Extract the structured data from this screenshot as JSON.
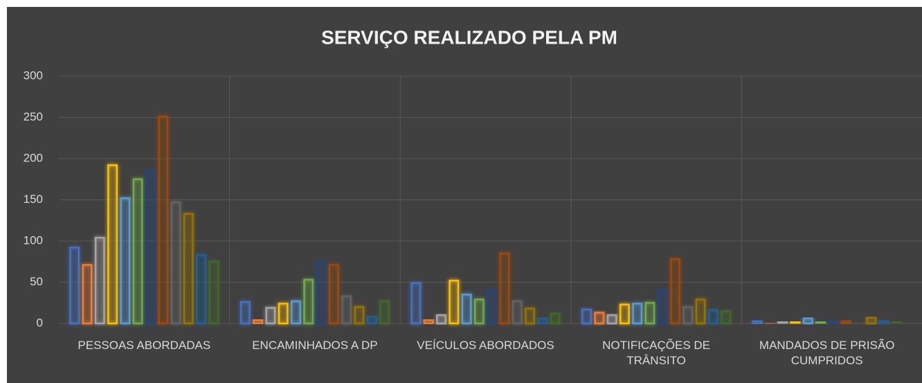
{
  "chart_data": {
    "type": "bar",
    "title": "SERVIÇO REALIZADO PELA PM",
    "categories": [
      "PESSOAS ABORDADAS",
      "ENCAMINHADOS A DP",
      "VEÍCULOS ABORDADOS",
      "NOTIFICAÇÕES DE TRÂNSITO",
      "MANDADOS DE PRISÃO CUMPRIDOS"
    ],
    "series": [
      {
        "color": "#4472c4",
        "values": [
          92,
          26,
          49,
          17,
          3
        ]
      },
      {
        "color": "#ed7d31",
        "values": [
          71,
          4,
          4,
          13,
          0
        ]
      },
      {
        "color": "#a5a5a5",
        "values": [
          104,
          19,
          10,
          10,
          2
        ]
      },
      {
        "color": "#ffc000",
        "values": [
          192,
          24,
          52,
          23,
          2
        ]
      },
      {
        "color": "#5b9bd5",
        "values": [
          152,
          27,
          35,
          24,
          6
        ]
      },
      {
        "color": "#70ad47",
        "values": [
          175,
          53,
          29,
          25,
          2
        ]
      },
      {
        "color": "#264478",
        "values": [
          185,
          74,
          40,
          40,
          3
        ]
      },
      {
        "color": "#9e480e",
        "values": [
          251,
          71,
          85,
          78,
          3
        ]
      },
      {
        "color": "#636363",
        "values": [
          147,
          33,
          27,
          20,
          0
        ]
      },
      {
        "color": "#997300",
        "values": [
          133,
          20,
          18,
          29,
          7
        ]
      },
      {
        "color": "#255e91",
        "values": [
          83,
          8,
          6,
          16,
          3
        ]
      },
      {
        "color": "#43682b",
        "values": [
          75,
          27,
          12,
          15,
          2
        ]
      }
    ],
    "ylim": [
      0,
      300
    ],
    "yticks": [
      0,
      50,
      100,
      150,
      200,
      250,
      300
    ],
    "grid": true
  }
}
